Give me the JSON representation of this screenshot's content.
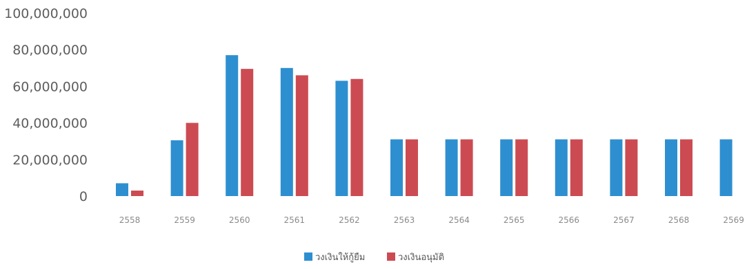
{
  "chart_data": {
    "type": "bar",
    "title": "",
    "xlabel": "",
    "ylabel": "",
    "ylim": [
      0,
      100000000
    ],
    "yticks": [
      "0",
      "20,000,000",
      "40,000,000",
      "60,000,000",
      "80,000,000",
      "100,000,000"
    ],
    "categories": [
      "2558",
      "2559",
      "2560",
      "2561",
      "2562",
      "2563",
      "2564",
      "2565",
      "2566",
      "2567",
      "2568",
      "2569"
    ],
    "series": [
      {
        "name": "วงเงินให้กู้ยืม",
        "color": "#2e8fd0",
        "values": [
          7000000,
          30500000,
          77000000,
          70000000,
          63000000,
          31000000,
          31000000,
          31000000,
          31000000,
          31000000,
          31000000,
          31000000
        ]
      },
      {
        "name": "วงเงินอนุมัติ",
        "color": "#cc4b52",
        "values": [
          3000000,
          40000000,
          69500000,
          66000000,
          64000000,
          31000000,
          31000000,
          31000000,
          31000000,
          31000000,
          31000000,
          null
        ]
      }
    ],
    "grid": false,
    "legend_position": "bottom-center"
  }
}
